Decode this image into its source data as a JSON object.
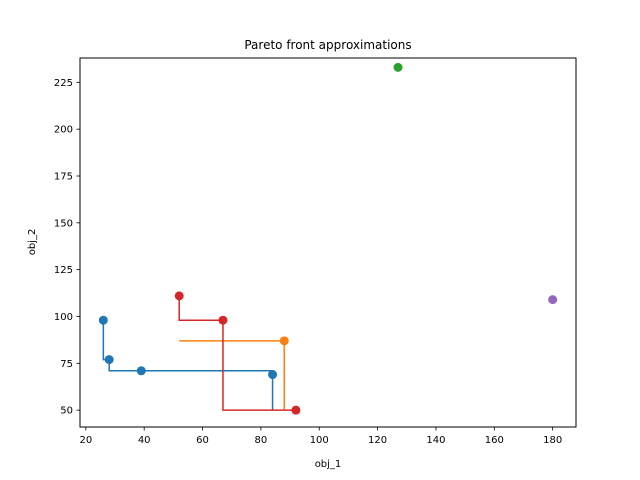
{
  "chart_data": {
    "type": "line",
    "title": "Pareto front approximations",
    "xlabel": "obj_1",
    "ylabel": "obj_2",
    "xlim": [
      18,
      188
    ],
    "ylim": [
      41,
      238
    ],
    "xticks": [
      20,
      40,
      60,
      80,
      100,
      120,
      140,
      160,
      180
    ],
    "yticks": [
      50,
      75,
      100,
      125,
      150,
      175,
      200,
      225
    ],
    "grid": false,
    "legend": "none",
    "series": [
      {
        "color": "#1f77b4",
        "points": [
          [
            26,
            98
          ],
          [
            28,
            77
          ],
          [
            39,
            71
          ],
          [
            84,
            69
          ]
        ],
        "step_path": [
          [
            26,
            98
          ],
          [
            26,
            77
          ],
          [
            28,
            77
          ],
          [
            28,
            71
          ],
          [
            39,
            71
          ],
          [
            84,
            71
          ],
          [
            84,
            50
          ]
        ]
      },
      {
        "color": "#ff7f0e",
        "points": [
          [
            88,
            87
          ]
        ],
        "step_path": [
          [
            52,
            87
          ],
          [
            88,
            87
          ],
          [
            88,
            50
          ]
        ]
      },
      {
        "color": "#2ca02c",
        "points": [
          [
            127,
            233
          ]
        ],
        "step_path": []
      },
      {
        "color": "#d62728",
        "points": [
          [
            52,
            111
          ],
          [
            67,
            98
          ],
          [
            92,
            50
          ]
        ],
        "step_path": [
          [
            52,
            111
          ],
          [
            52,
            98
          ],
          [
            67,
            98
          ],
          [
            67,
            50
          ],
          [
            92,
            50
          ]
        ]
      },
      {
        "color": "#9467bd",
        "points": [
          [
            180,
            109
          ]
        ],
        "step_path": []
      }
    ]
  }
}
